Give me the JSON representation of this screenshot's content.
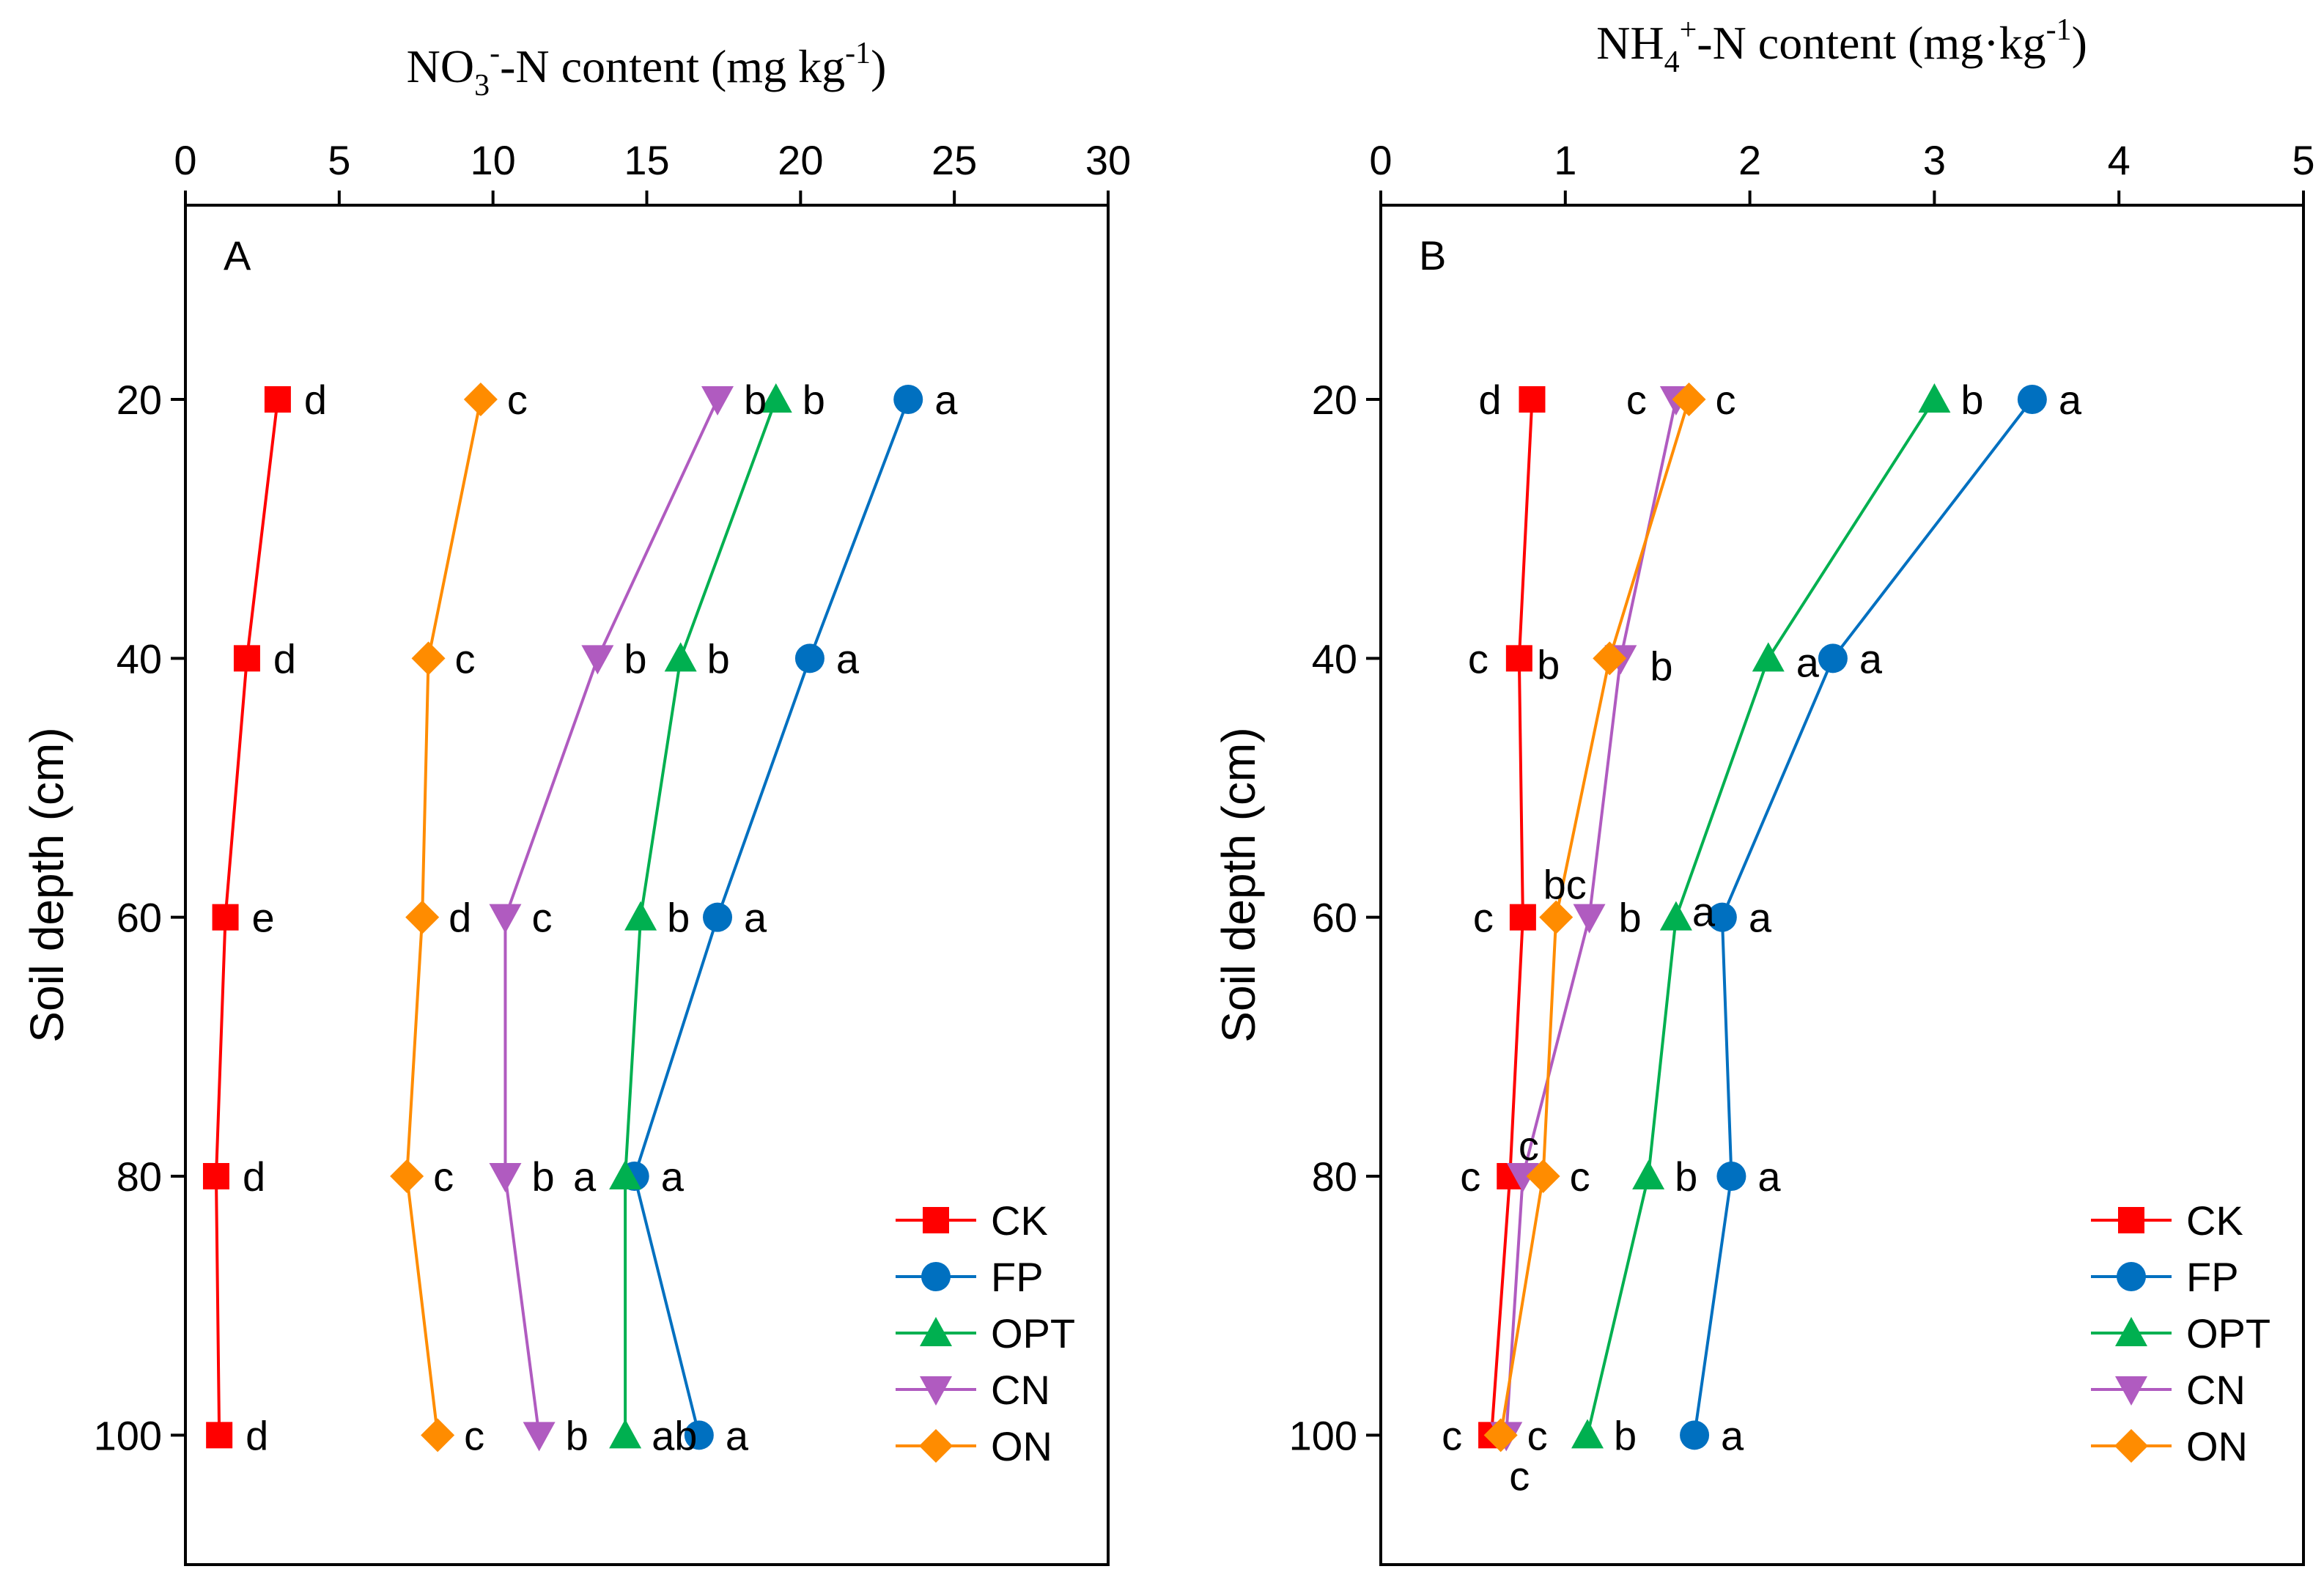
{
  "chart_data": [
    {
      "type": "line",
      "panel_label": "A",
      "title_parts": {
        "main": "NO",
        "sub": "3",
        "sup": "-",
        "rest": "-N content (mg kg",
        "unit_sup": "-1",
        "close": ")"
      },
      "title_text": "NO3--N content (mg kg-1)",
      "xlabel": "NO3--N content (mg kg-1)",
      "ylabel": "Soil depth (cm)",
      "xlim": [
        0,
        30
      ],
      "ylim": [
        110,
        5
      ],
      "xticks": [
        0,
        5,
        10,
        15,
        20,
        25,
        30
      ],
      "yticks": [
        20,
        40,
        60,
        80,
        100
      ],
      "x_axis_position": "top",
      "legend_position": "bottom-right",
      "depths": [
        20,
        40,
        60,
        80,
        100
      ],
      "series": [
        {
          "name": "CK",
          "color": "#ff0000",
          "marker": "square",
          "values": [
            3.0,
            2.0,
            1.3,
            1.0,
            1.1
          ],
          "labels": [
            "d",
            "d",
            "e",
            "d",
            "d"
          ]
        },
        {
          "name": "FP",
          "color": "#0070c0",
          "marker": "circle",
          "values": [
            23.5,
            20.3,
            17.3,
            14.6,
            16.7
          ],
          "labels": [
            "a",
            "a",
            "a",
            "a",
            "a"
          ]
        },
        {
          "name": "OPT",
          "color": "#00b050",
          "marker": "triangle-up",
          "values": [
            19.2,
            16.1,
            14.8,
            14.3,
            14.3
          ],
          "labels": [
            "b",
            "b",
            "b",
            "a",
            "ab"
          ]
        },
        {
          "name": "CN",
          "color": "#b05bc0",
          "marker": "triangle-down",
          "values": [
            17.3,
            13.4,
            10.4,
            10.4,
            11.5
          ],
          "labels": [
            "b",
            "b",
            "c",
            "b",
            "b"
          ]
        },
        {
          "name": "ON",
          "color": "#ff8c00",
          "marker": "diamond",
          "values": [
            9.6,
            7.9,
            7.7,
            7.2,
            8.2
          ],
          "labels": [
            "c",
            "c",
            "d",
            "c",
            "c"
          ]
        }
      ]
    },
    {
      "type": "line",
      "panel_label": "B",
      "title_parts": {
        "main": "NH",
        "sub": "4",
        "sup": "+",
        "rest": "-N content (mg·kg",
        "unit_sup": "-1",
        "close": ")"
      },
      "title_text": "NH4+-N content (mg·kg-1)",
      "xlabel": "NH4+-N content (mg·kg-1)",
      "ylabel": "Soil depth (cm)",
      "xlim": [
        0,
        5
      ],
      "ylim": [
        110,
        5
      ],
      "xticks": [
        0,
        1,
        2,
        3,
        4,
        5
      ],
      "yticks": [
        20,
        40,
        60,
        80,
        100
      ],
      "x_axis_position": "top",
      "legend_position": "bottom-right",
      "depths": [
        20,
        40,
        60,
        80,
        100
      ],
      "series": [
        {
          "name": "CK",
          "color": "#ff0000",
          "marker": "square",
          "values": [
            0.82,
            0.75,
            0.77,
            0.7,
            0.6
          ],
          "labels": [
            "d",
            "c",
            "c",
            "c",
            "c"
          ]
        },
        {
          "name": "FP",
          "color": "#0070c0",
          "marker": "circle",
          "values": [
            3.53,
            2.45,
            1.85,
            1.9,
            1.7
          ],
          "labels": [
            "a",
            "a",
            "a",
            "a",
            "a"
          ]
        },
        {
          "name": "OPT",
          "color": "#00b050",
          "marker": "triangle-up",
          "values": [
            3.0,
            2.1,
            1.6,
            1.45,
            1.12
          ],
          "labels": [
            "b",
            "a",
            "a",
            "b",
            "b"
          ]
        },
        {
          "name": "CN",
          "color": "#b05bc0",
          "marker": "triangle-down",
          "values": [
            1.6,
            1.3,
            1.13,
            0.77,
            0.68
          ],
          "labels": [
            "c",
            "b",
            "b",
            "c",
            "c"
          ]
        },
        {
          "name": "ON",
          "color": "#ff8c00",
          "marker": "diamond",
          "values": [
            1.67,
            1.24,
            0.95,
            0.88,
            0.65
          ],
          "labels": [
            "c",
            "b",
            "bc",
            "c",
            "c"
          ]
        }
      ]
    }
  ]
}
